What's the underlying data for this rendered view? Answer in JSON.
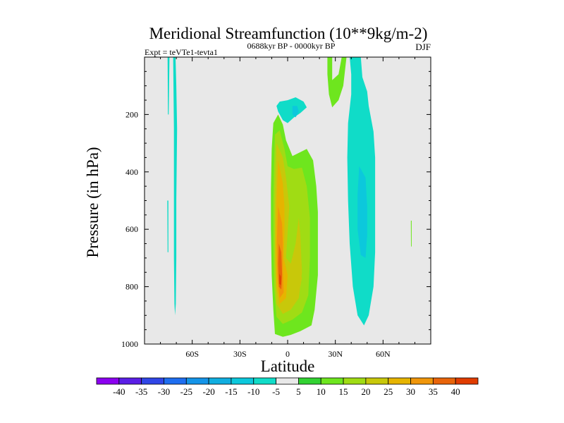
{
  "chart_data": {
    "type": "heatmap",
    "title": "Meridional Streamfunction (10**9kg/m-2)",
    "subtitle_left": "Expt = teVTe1-tevta1",
    "subtitle_center": "0688kyr BP - 0000kyr BP",
    "subtitle_right": "DJF",
    "xlabel": "Latitude",
    "ylabel": "Pressure (in hPa)",
    "xlim": [
      -90,
      90
    ],
    "ylim": [
      1000,
      0
    ],
    "x_ticks": [
      {
        "value": -60,
        "label": "60S"
      },
      {
        "value": -30,
        "label": "30S"
      },
      {
        "value": 0,
        "label": "0"
      },
      {
        "value": 30,
        "label": "30N"
      },
      {
        "value": 60,
        "label": "60N"
      }
    ],
    "y_ticks": [
      {
        "value": 200,
        "label": "200"
      },
      {
        "value": 400,
        "label": "400"
      },
      {
        "value": 600,
        "label": "600"
      },
      {
        "value": 800,
        "label": "800"
      },
      {
        "value": 1000,
        "label": "1000"
      }
    ],
    "contour_levels": [
      -40,
      -35,
      -30,
      -25,
      -20,
      -15,
      -10,
      -5,
      5,
      10,
      15,
      20,
      25,
      30,
      35,
      40
    ],
    "colorbar_colors": [
      "#8b00f0",
      "#5a1ee6",
      "#3046e6",
      "#1e6ef0",
      "#1494e8",
      "#10aee0",
      "#0cc8dc",
      "#10dcc8",
      "#e8e8e8",
      "#32d232",
      "#6ee61e",
      "#a0dc14",
      "#c8c80a",
      "#e6b400",
      "#f0960a",
      "#e8640a",
      "#e03c00"
    ],
    "background_color": "#e8e8e8",
    "regions": [
      {
        "name": "tropical-cell-5",
        "level": 5,
        "color": "#6ee61e",
        "points": [
          [
            -9,
            230
          ],
          [
            -6,
            200
          ],
          [
            -3,
            235
          ],
          [
            -1,
            290
          ],
          [
            3,
            345
          ],
          [
            12,
            320
          ],
          [
            16,
            360
          ],
          [
            18,
            450
          ],
          [
            19,
            540
          ],
          [
            19,
            680
          ],
          [
            19,
            760
          ],
          [
            17,
            880
          ],
          [
            15,
            935
          ],
          [
            8,
            955
          ],
          [
            2,
            968
          ],
          [
            -3,
            975
          ],
          [
            -8,
            965
          ],
          [
            -9,
            880
          ],
          [
            -10,
            760
          ],
          [
            -10.5,
            600
          ],
          [
            -10.5,
            460
          ],
          [
            -10,
            320
          ]
        ]
      },
      {
        "name": "tropical-cell-10",
        "level": 10,
        "color": "#a0dc14",
        "points": [
          [
            -8,
            270
          ],
          [
            -5,
            255
          ],
          [
            -2,
            320
          ],
          [
            0,
            380
          ],
          [
            4,
            390
          ],
          [
            9,
            385
          ],
          [
            12,
            450
          ],
          [
            14,
            560
          ],
          [
            14,
            700
          ],
          [
            13,
            830
          ],
          [
            9,
            890
          ],
          [
            3,
            915
          ],
          [
            -3,
            930
          ],
          [
            -7,
            905
          ],
          [
            -8.5,
            800
          ],
          [
            -9,
            650
          ],
          [
            -9,
            500
          ],
          [
            -8.5,
            380
          ]
        ]
      },
      {
        "name": "tropical-cell-15",
        "level": 15,
        "color": "#c8c80a",
        "points": [
          [
            -7,
            300
          ],
          [
            -3,
            350
          ],
          [
            -1,
            420
          ],
          [
            1,
            520
          ],
          [
            0,
            610
          ],
          [
            -1,
            700
          ],
          [
            2,
            720
          ],
          [
            5,
            650
          ],
          [
            7,
            560
          ],
          [
            8,
            620
          ],
          [
            9,
            750
          ],
          [
            7,
            840
          ],
          [
            2,
            880
          ],
          [
            -3,
            895
          ],
          [
            -7,
            860
          ],
          [
            -8,
            700
          ],
          [
            -8,
            520
          ],
          [
            -7.5,
            400
          ]
        ]
      },
      {
        "name": "tropical-cell-20",
        "level": 20,
        "color": "#e6b400",
        "points": [
          [
            -6,
            360
          ],
          [
            -3,
            440
          ],
          [
            -2,
            520
          ],
          [
            -2,
            610
          ],
          [
            -2.5,
            700
          ],
          [
            0,
            760
          ],
          [
            -1,
            840
          ],
          [
            -5,
            860
          ],
          [
            -7,
            800
          ],
          [
            -7.5,
            650
          ],
          [
            -7,
            500
          ]
        ]
      },
      {
        "name": "tropical-cell-25",
        "level": 25,
        "color": "#f0960a",
        "points": [
          [
            -6,
            520
          ],
          [
            -3.5,
            580
          ],
          [
            -3,
            650
          ],
          [
            -3,
            740
          ],
          [
            -2.5,
            820
          ],
          [
            -5,
            840
          ],
          [
            -6.5,
            760
          ],
          [
            -6.8,
            640
          ]
        ]
      },
      {
        "name": "tropical-cell-30",
        "level": 30,
        "color": "#e8640a",
        "points": [
          [
            -5.5,
            650
          ],
          [
            -4,
            680
          ],
          [
            -3.5,
            760
          ],
          [
            -4,
            810
          ],
          [
            -5.5,
            800
          ],
          [
            -6,
            720
          ]
        ]
      },
      {
        "name": "tropical-cell-35",
        "level": 35,
        "color": "#e03c00",
        "points": [
          [
            -5.2,
            755
          ],
          [
            -4.2,
            765
          ],
          [
            -4.2,
            795
          ],
          [
            -5.2,
            790
          ]
        ]
      },
      {
        "name": "tropical-cell-15b",
        "level": 15,
        "color": "#c8c80a",
        "points": [
          [
            7,
            740
          ],
          [
            9,
            770
          ],
          [
            8,
            800
          ],
          [
            6,
            780
          ]
        ]
      },
      {
        "name": "upper-neg-cell",
        "level": -5,
        "color": "#10dcc8",
        "points": [
          [
            -5,
            155
          ],
          [
            0,
            150
          ],
          [
            5,
            140
          ],
          [
            10,
            155
          ],
          [
            12,
            175
          ],
          [
            8,
            195
          ],
          [
            4,
            210
          ],
          [
            0,
            230
          ],
          [
            -3,
            220
          ],
          [
            -6,
            190
          ],
          [
            -7,
            170
          ]
        ]
      },
      {
        "name": "upper-neg-core",
        "level": -10,
        "color": "#0cc8dc",
        "points": [
          [
            3,
            170
          ],
          [
            6,
            170
          ],
          [
            7,
            190
          ],
          [
            5,
            210
          ],
          [
            3,
            200
          ]
        ]
      },
      {
        "name": "nh-neg-cell",
        "level": -5,
        "color": "#10dcc8",
        "points": [
          [
            39,
            0
          ],
          [
            46,
            0
          ],
          [
            47,
            70
          ],
          [
            50,
            120
          ],
          [
            51,
            170
          ],
          [
            54,
            260
          ],
          [
            55,
            350
          ],
          [
            55,
            450
          ],
          [
            55,
            560
          ],
          [
            55,
            680
          ],
          [
            54,
            800
          ],
          [
            51,
            900
          ],
          [
            48,
            935
          ],
          [
            44,
            900
          ],
          [
            41,
            800
          ],
          [
            39,
            650
          ],
          [
            38,
            500
          ],
          [
            37.5,
            350
          ],
          [
            38,
            230
          ],
          [
            40,
            130
          ],
          [
            40,
            60
          ]
        ]
      },
      {
        "name": "nh-neg-core",
        "level": -10,
        "color": "#0cc8dc",
        "points": [
          [
            45,
            380
          ],
          [
            49,
            420
          ],
          [
            50,
            520
          ],
          [
            50,
            620
          ],
          [
            49,
            700
          ],
          [
            46,
            690
          ],
          [
            44,
            600
          ],
          [
            44,
            480
          ]
        ]
      },
      {
        "name": "nh-pos-cell",
        "level": 5,
        "color": "#6ee61e",
        "points": [
          [
            25,
            0
          ],
          [
            28,
            0
          ],
          [
            28,
            80
          ],
          [
            32,
            60
          ],
          [
            34,
            0
          ],
          [
            37,
            0
          ],
          [
            35,
            100
          ],
          [
            32,
            150
          ],
          [
            28,
            175
          ],
          [
            26,
            130
          ],
          [
            25,
            60
          ]
        ]
      },
      {
        "name": "sh-neg-strip-1",
        "level": -5,
        "color": "#10dcc8",
        "points": [
          [
            -75.5,
            0
          ],
          [
            -74.3,
            0
          ],
          [
            -74.8,
            200
          ],
          [
            -75.3,
            200
          ]
        ]
      },
      {
        "name": "sh-neg-strip-2",
        "level": -5,
        "color": "#10dcc8",
        "points": [
          [
            -72,
            0
          ],
          [
            -70.5,
            0
          ],
          [
            -70,
            100
          ],
          [
            -69.5,
            250
          ],
          [
            -70,
            500
          ],
          [
            -70,
            700
          ],
          [
            -70.3,
            860
          ],
          [
            -70.8,
            900
          ],
          [
            -71.2,
            860
          ],
          [
            -71.5,
            700
          ],
          [
            -71.5,
            500
          ],
          [
            -71.5,
            250
          ]
        ]
      },
      {
        "name": "sh-neg-strip-3",
        "level": -5,
        "color": "#10dcc8",
        "points": [
          [
            -75.7,
            500
          ],
          [
            -75,
            500
          ],
          [
            -75,
            680
          ],
          [
            -75.5,
            680
          ]
        ]
      },
      {
        "name": "nh-pos-speck",
        "level": 5,
        "color": "#6ee61e",
        "points": [
          [
            77.5,
            570
          ],
          [
            78,
            570
          ],
          [
            78,
            660
          ],
          [
            77.6,
            660
          ]
        ]
      }
    ]
  }
}
